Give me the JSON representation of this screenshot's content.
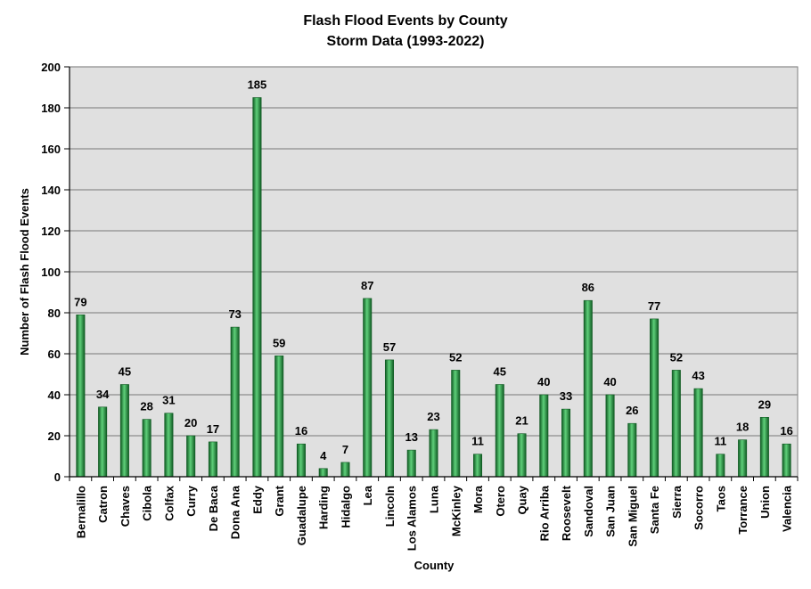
{
  "chart_data": {
    "type": "bar",
    "title": "Flash Flood Events by County",
    "subtitle": "Storm Data (1993-2022)",
    "xlabel": "County",
    "ylabel": "Number of Flash Flood Events",
    "ylim": [
      0,
      200
    ],
    "yticks": [
      0,
      20,
      40,
      60,
      80,
      100,
      120,
      140,
      160,
      180,
      200
    ],
    "grid": true,
    "legend": "none",
    "categories": [
      "Bernalillo",
      "Catron",
      "Chaves",
      "Cibola",
      "Colfax",
      "Curry",
      "De Baca",
      "Dona Ana",
      "Eddy",
      "Grant",
      "Guadalupe",
      "Harding",
      "Hidalgo",
      "Lea",
      "Lincoln",
      "Los Alamos",
      "Luna",
      "McKinley",
      "Mora",
      "Otero",
      "Quay",
      "Rio Arriba",
      "Roosevelt",
      "Sandoval",
      "San Juan",
      "San Miguel",
      "Santa Fe",
      "Sierra",
      "Socorro",
      "Taos",
      "Torrance",
      "Union",
      "Valencia"
    ],
    "values": [
      79,
      34,
      45,
      28,
      31,
      20,
      17,
      73,
      185,
      59,
      16,
      4,
      7,
      87,
      57,
      13,
      23,
      52,
      11,
      45,
      21,
      40,
      33,
      86,
      40,
      26,
      77,
      52,
      43,
      11,
      18,
      29,
      16
    ],
    "colors": {
      "bar": "#1f8a3a",
      "bar_highlight": "#5fd07a",
      "bar_dark": "#0f5a22",
      "plot_bg": "#e0e0e0",
      "gridline": "#8c8c8c"
    }
  }
}
